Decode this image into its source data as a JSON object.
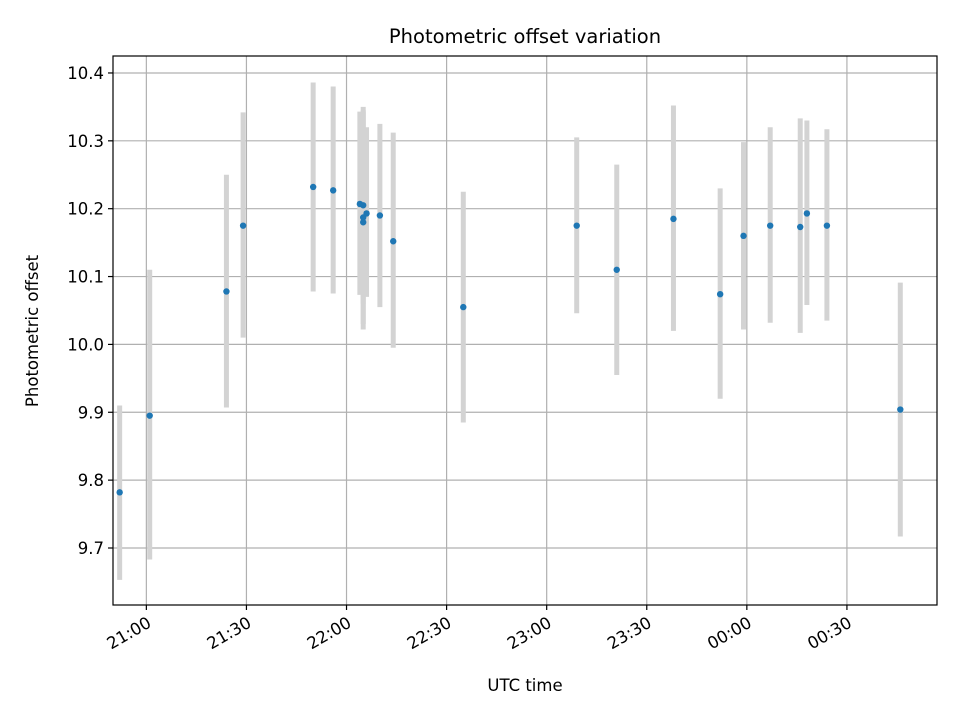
{
  "chart_data": {
    "type": "scatter",
    "title": "Photometric offset variation",
    "xlabel": "UTC time",
    "ylabel": "Photometric offset",
    "xlim": [
      "20:50",
      "00:57"
    ],
    "ylim": [
      9.616,
      10.425
    ],
    "grid": true,
    "x_ticks": [
      {
        "label": "21:00",
        "value": "21:00"
      },
      {
        "label": "21:30",
        "value": "21:30"
      },
      {
        "label": "22:00",
        "value": "22:00"
      },
      {
        "label": "22:30",
        "value": "22:30"
      },
      {
        "label": "23:00",
        "value": "23:00"
      },
      {
        "label": "23:30",
        "value": "23:30"
      },
      {
        "label": "00:00",
        "value": "00:00"
      },
      {
        "label": "00:30",
        "value": "00:30"
      }
    ],
    "y_ticks": [
      {
        "label": "9.7",
        "value": 9.7
      },
      {
        "label": "9.8",
        "value": 9.8
      },
      {
        "label": "9.9",
        "value": 9.9
      },
      {
        "label": "10.0",
        "value": 10.0
      },
      {
        "label": "10.1",
        "value": 10.1
      },
      {
        "label": "10.2",
        "value": 10.2
      },
      {
        "label": "10.3",
        "value": 10.3
      },
      {
        "label": "10.4",
        "value": 10.4
      }
    ],
    "colors": {
      "point": "#1f77b4",
      "errorbar": "#d3d3d3",
      "grid": "#b0b0b0"
    },
    "points": [
      {
        "x": "20:52",
        "y": 9.782,
        "ylow": 9.653,
        "yhigh": 9.91
      },
      {
        "x": "21:01",
        "y": 9.895,
        "ylow": 9.683,
        "yhigh": 10.11
      },
      {
        "x": "21:24",
        "y": 10.078,
        "ylow": 9.907,
        "yhigh": 10.25
      },
      {
        "x": "21:29",
        "y": 10.175,
        "ylow": 10.01,
        "yhigh": 10.342
      },
      {
        "x": "21:50",
        "y": 10.232,
        "ylow": 10.078,
        "yhigh": 10.386
      },
      {
        "x": "21:56",
        "y": 10.227,
        "ylow": 10.075,
        "yhigh": 10.38
      },
      {
        "x": "22:04",
        "y": 10.207,
        "ylow": 10.073,
        "yhigh": 10.343
      },
      {
        "x": "22:05",
        "y": 10.205,
        "ylow": 10.06,
        "yhigh": 10.345
      },
      {
        "x": "22:05",
        "y": 10.18,
        "ylow": 10.022,
        "yhigh": 10.35
      },
      {
        "x": "22:05",
        "y": 10.187,
        "ylow": 10.03,
        "yhigh": 10.343
      },
      {
        "x": "22:06",
        "y": 10.193,
        "ylow": 10.07,
        "yhigh": 10.32
      },
      {
        "x": "22:10",
        "y": 10.19,
        "ylow": 10.055,
        "yhigh": 10.325
      },
      {
        "x": "22:14",
        "y": 10.152,
        "ylow": 9.995,
        "yhigh": 10.312
      },
      {
        "x": "22:35",
        "y": 10.055,
        "ylow": 9.885,
        "yhigh": 10.225
      },
      {
        "x": "23:09",
        "y": 10.175,
        "ylow": 10.046,
        "yhigh": 10.305
      },
      {
        "x": "23:21",
        "y": 10.11,
        "ylow": 9.955,
        "yhigh": 10.265
      },
      {
        "x": "23:38",
        "y": 10.185,
        "ylow": 10.02,
        "yhigh": 10.352
      },
      {
        "x": "23:52",
        "y": 10.074,
        "ylow": 9.92,
        "yhigh": 10.23
      },
      {
        "x": "23:59",
        "y": 10.16,
        "ylow": 10.022,
        "yhigh": 10.298
      },
      {
        "x": "00:07",
        "y": 10.175,
        "ylow": 10.032,
        "yhigh": 10.32
      },
      {
        "x": "00:16",
        "y": 10.173,
        "ylow": 10.017,
        "yhigh": 10.333
      },
      {
        "x": "00:18",
        "y": 10.193,
        "ylow": 10.058,
        "yhigh": 10.33
      },
      {
        "x": "00:24",
        "y": 10.175,
        "ylow": 10.035,
        "yhigh": 10.317
      },
      {
        "x": "00:46",
        "y": 9.904,
        "ylow": 9.717,
        "yhigh": 10.091
      }
    ]
  }
}
